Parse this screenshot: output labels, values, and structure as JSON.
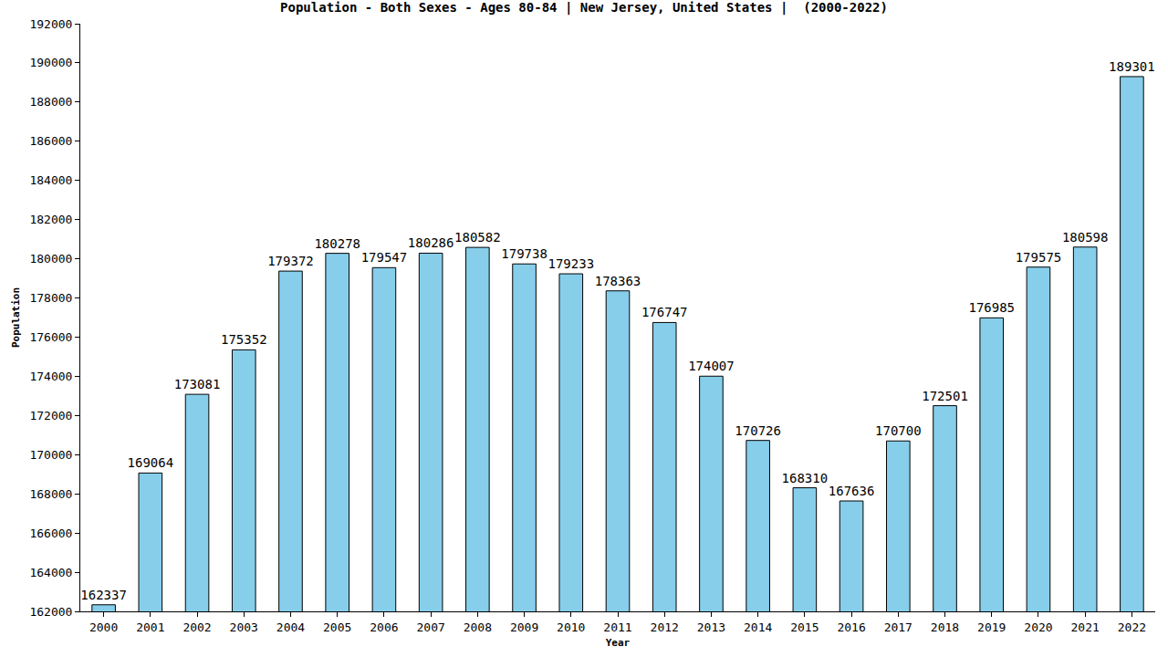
{
  "chart_data": {
    "type": "bar",
    "title": "Population - Both Sexes - Ages 80-84 | New Jersey, United States |  (2000-2022)",
    "x_label": "Year",
    "y_label": "Population",
    "categories": [
      "2000",
      "2001",
      "2002",
      "2003",
      "2004",
      "2005",
      "2006",
      "2007",
      "2008",
      "2009",
      "2010",
      "2011",
      "2012",
      "2013",
      "2014",
      "2015",
      "2016",
      "2017",
      "2018",
      "2019",
      "2020",
      "2021",
      "2022"
    ],
    "values": [
      162337,
      169064,
      173081,
      175352,
      179372,
      180278,
      179547,
      180286,
      180582,
      179738,
      179233,
      178363,
      176747,
      174007,
      170726,
      168310,
      167636,
      170700,
      172501,
      176985,
      179575,
      180598,
      189301
    ],
    "color": "#87ceeb",
    "ylim": [
      162000,
      192000
    ],
    "yticks": [
      162000,
      164000,
      166000,
      168000,
      170000,
      172000,
      174000,
      176000,
      178000,
      180000,
      182000,
      184000,
      186000,
      188000,
      190000,
      192000
    ],
    "grid": false,
    "data_labels": true
  }
}
